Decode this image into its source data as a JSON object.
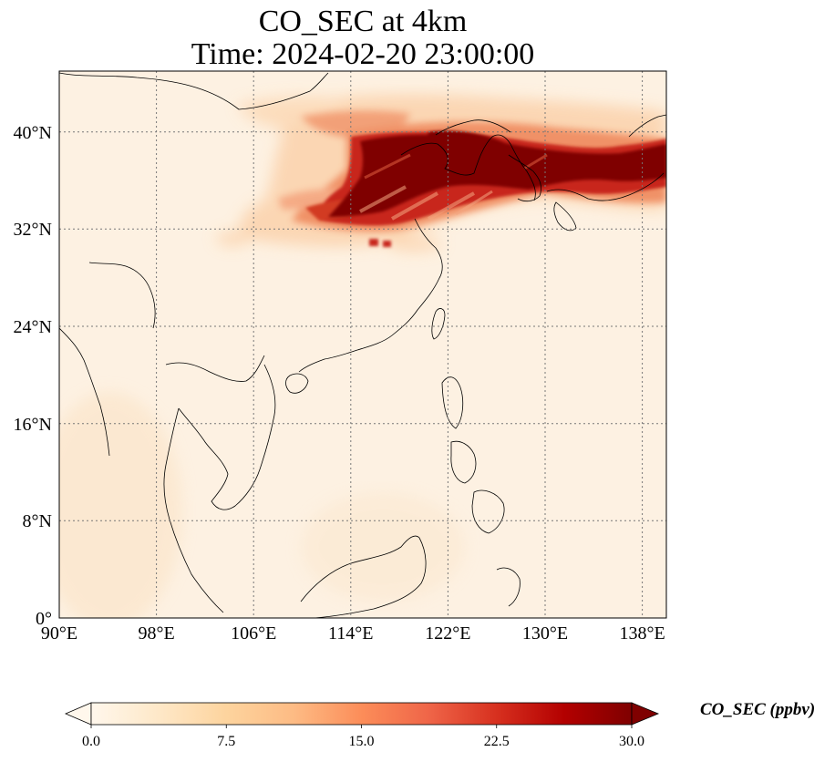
{
  "title": {
    "line1": "CO_SEC at 4km",
    "line2": "Time: 2024-02-20 23:00:00"
  },
  "map": {
    "extent": {
      "lon": [
        90,
        140
      ],
      "lat": [
        0,
        45
      ]
    },
    "lon_ticks": [
      {
        "value": 90,
        "label": "90°E"
      },
      {
        "value": 98,
        "label": "98°E"
      },
      {
        "value": 106,
        "label": "106°E"
      },
      {
        "value": 114,
        "label": "114°E"
      },
      {
        "value": 122,
        "label": "122°E"
      },
      {
        "value": 130,
        "label": "130°E"
      },
      {
        "value": 138,
        "label": "138°E"
      }
    ],
    "lat_ticks": [
      {
        "value": 0,
        "label": "0°"
      },
      {
        "value": 8,
        "label": "8°N"
      },
      {
        "value": 16,
        "label": "16°N"
      },
      {
        "value": 24,
        "label": "24°N"
      },
      {
        "value": 32,
        "label": "32°N"
      },
      {
        "value": 40,
        "label": "40°N"
      }
    ],
    "gridlines": "dotted",
    "background_color": "#fdf1e2",
    "plume_colors": {
      "light": "#fbcfa6",
      "mid": "#ef8a5e",
      "high": "#c8281b",
      "max": "#7f0000"
    }
  },
  "colorbar": {
    "label": "CO_SEC (ppbv)",
    "min": 0.0,
    "max": 30.0,
    "ticks": [
      "0.0",
      "7.5",
      "15.0",
      "22.5",
      "30.0"
    ],
    "colormap": "OrRd",
    "colors": [
      "#fff7ec",
      "#fee8c8",
      "#fdd49e",
      "#fdbb84",
      "#fc8d59",
      "#ef6548",
      "#d7301f",
      "#b30000",
      "#7f0000"
    ],
    "extend": "both"
  }
}
